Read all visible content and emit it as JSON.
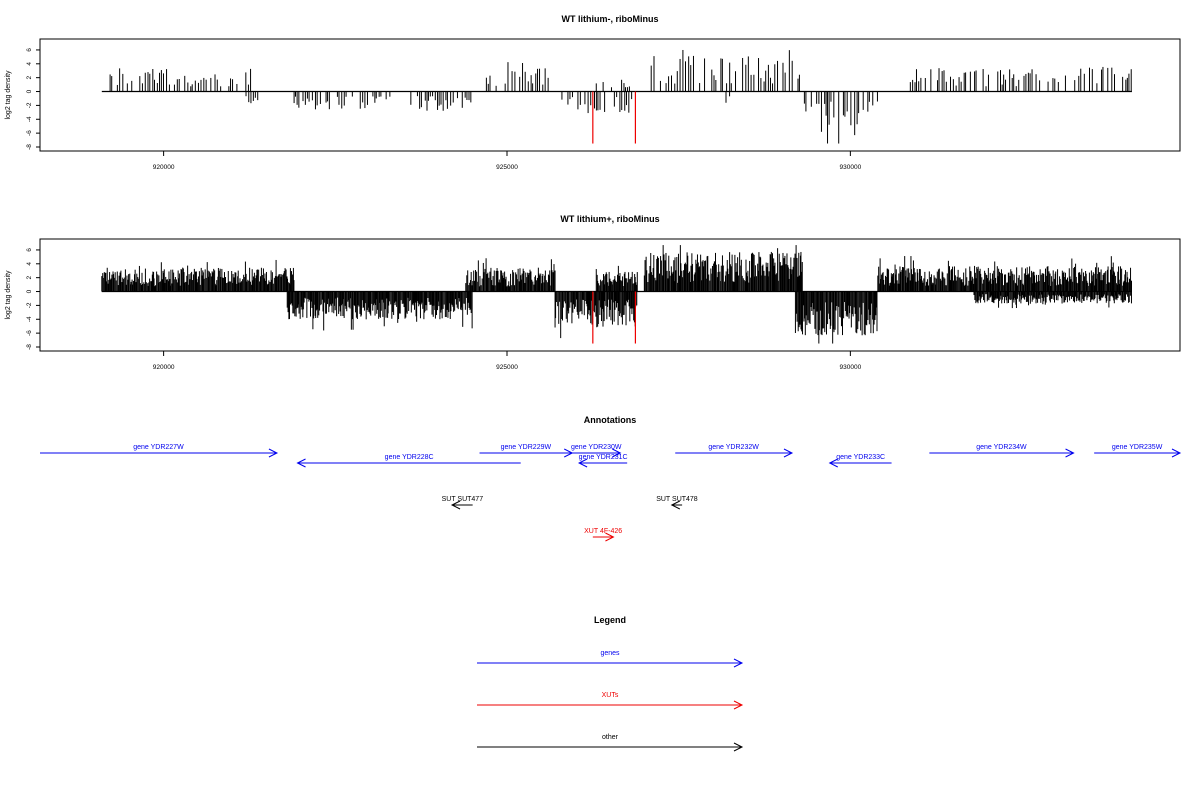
{
  "chart_data": [
    {
      "type": "bar",
      "title": "WT lithium-, riboMinus",
      "ylabel": "log2 tag density",
      "xlabel": "",
      "xlim": [
        918200,
        934800
      ],
      "ylim": [
        -8,
        7
      ],
      "yticks": [
        6,
        4,
        2,
        0,
        -2,
        -4,
        -6,
        -8
      ],
      "xticks": [
        920000,
        925000,
        930000
      ],
      "xtick_labels": [
        "920000",
        "925000",
        "930000"
      ],
      "density": "sparse",
      "series": [
        {
          "range": [
            919200,
            921300
          ],
          "sign": 1,
          "amp": 3.0
        },
        {
          "range": [
            921200,
            921400
          ],
          "sign": -1,
          "amp": 1.5
        },
        {
          "range": [
            921900,
            923300
          ],
          "sign": -1,
          "amp": 2.5
        },
        {
          "range": [
            923600,
            924500
          ],
          "sign": -1,
          "amp": 2.5
        },
        {
          "range": [
            924700,
            925700
          ],
          "sign": 1,
          "amp": 3.0
        },
        {
          "range": [
            925800,
            926900
          ],
          "sign": -1,
          "amp": 3.0
        },
        {
          "range": [
            926300,
            926800
          ],
          "sign": 1,
          "amp": 1.5
        },
        {
          "range": [
            927100,
            929300
          ],
          "sign": 1,
          "amp": 4.5
        },
        {
          "range": [
            928100,
            928300
          ],
          "sign": -1,
          "amp": 1.5
        },
        {
          "range": [
            929300,
            930400
          ],
          "sign": -1,
          "amp": 5.5
        },
        {
          "range": [
            930800,
            934100
          ],
          "sign": 1,
          "amp": 3.0
        }
      ],
      "red_bars": [
        {
          "x": 926250,
          "y": -7.5
        },
        {
          "x": 926870,
          "y": -7.5
        }
      ]
    },
    {
      "type": "bar",
      "title": "WT lithium+, riboMinus",
      "ylabel": "log2 tag density",
      "xlabel": "",
      "xlim": [
        918200,
        934800
      ],
      "ylim": [
        -8,
        7
      ],
      "yticks": [
        6,
        4,
        2,
        0,
        -2,
        -4,
        -6,
        -8
      ],
      "xticks": [
        920000,
        925000,
        930000
      ],
      "xtick_labels": [
        "920000",
        "925000",
        "930000"
      ],
      "density": "dense",
      "series": [
        {
          "range": [
            919100,
            921900
          ],
          "sign": 1,
          "amp": 3.0
        },
        {
          "range": [
            921800,
            924500
          ],
          "sign": -1,
          "amp": 3.5
        },
        {
          "range": [
            924400,
            925700
          ],
          "sign": 1,
          "amp": 3.0
        },
        {
          "range": [
            925700,
            926900
          ],
          "sign": -1,
          "amp": 4.5
        },
        {
          "range": [
            926300,
            926900
          ],
          "sign": 1,
          "amp": 2.5
        },
        {
          "range": [
            927000,
            929300
          ],
          "sign": 1,
          "amp": 5.0
        },
        {
          "range": [
            929200,
            930400
          ],
          "sign": -1,
          "amp": 5.5
        },
        {
          "range": [
            930400,
            934100
          ],
          "sign": 1,
          "amp": 3.2
        },
        {
          "range": [
            931800,
            934100
          ],
          "sign": -1,
          "amp": 1.5
        }
      ],
      "red_bars": [
        {
          "x": 926250,
          "y": -7.5
        },
        {
          "x": 926870,
          "y": -7.5
        }
      ]
    }
  ],
  "annotations": {
    "title": "Annotations",
    "features": [
      {
        "label": "gene YDR227W",
        "start": 918200,
        "end": 921650,
        "dir": "right",
        "color": "#0000ee",
        "row": 0
      },
      {
        "label": "gene YDR228C",
        "start": 921950,
        "end": 925200,
        "dir": "left",
        "color": "#0000ee",
        "row": 1
      },
      {
        "label": "gene YDR229W",
        "start": 924600,
        "end": 925950,
        "dir": "right",
        "color": "#0000ee",
        "row": 0
      },
      {
        "label": "gene YDR230W",
        "start": 925950,
        "end": 926650,
        "dir": "right",
        "color": "#0000ee",
        "row": 0
      },
      {
        "label": "gene YDR231C",
        "start": 926050,
        "end": 926750,
        "dir": "left",
        "color": "#0000ee",
        "row": 1
      },
      {
        "label": "gene YDR232W",
        "start": 927450,
        "end": 929150,
        "dir": "right",
        "color": "#0000ee",
        "row": 0
      },
      {
        "label": "gene YDR233C",
        "start": 929700,
        "end": 930600,
        "dir": "left",
        "color": "#0000ee",
        "row": 1
      },
      {
        "label": "gene YDR234W",
        "start": 931150,
        "end": 933250,
        "dir": "right",
        "color": "#0000ee",
        "row": 0
      },
      {
        "label": "gene YDR235W",
        "start": 933550,
        "end": 934800,
        "dir": "right",
        "color": "#0000ee",
        "row": 0
      },
      {
        "label": "SUT SUT477",
        "start": 924200,
        "end": 924500,
        "dir": "left",
        "color": "#000000",
        "row": 2
      },
      {
        "label": "SUT SUT478",
        "start": 927400,
        "end": 927550,
        "dir": "left",
        "color": "#000000",
        "row": 2
      },
      {
        "label": "XUT 4F-426",
        "start": 926250,
        "end": 926550,
        "dir": "right",
        "color": "#ee0000",
        "row": 3
      }
    ]
  },
  "legend": {
    "title": "Legend",
    "items": [
      {
        "label": "genes",
        "color": "#0000ee"
      },
      {
        "label": "XUTs",
        "color": "#ee0000"
      },
      {
        "label": "other",
        "color": "#000000"
      }
    ]
  }
}
